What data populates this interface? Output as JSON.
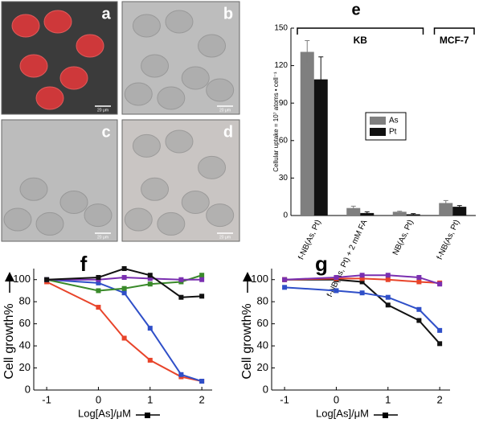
{
  "panels": [
    {
      "label": "a",
      "scale_bar": "20 μm"
    },
    {
      "label": "b",
      "scale_bar": "20 μm"
    },
    {
      "label": "c",
      "scale_bar": "20 μm"
    },
    {
      "label": "d",
      "scale_bar": "20 μm"
    }
  ],
  "chart_data": [
    {
      "type": "bar",
      "label": "e",
      "ylabel": "Cellular uptake = 10⁷ atoms • cell⁻¹",
      "categories": [
        "f-NB(As, Pt)",
        "f-NB(As, Pt) + 2 mM FA",
        "NB(As, Pt)",
        "f-NB(As, Pt)"
      ],
      "groups": [
        "KB",
        "MCF-7"
      ],
      "series": [
        {
          "name": "As",
          "color": "#7f7f7f",
          "values": [
            131,
            6,
            3,
            10
          ],
          "errors": [
            9,
            1.5,
            0.5,
            2
          ]
        },
        {
          "name": "Pt",
          "color": "#111111",
          "values": [
            109,
            2,
            1,
            7
          ],
          "errors": [
            18,
            1,
            0.5,
            1
          ]
        }
      ],
      "ylim": [
        0,
        150
      ],
      "yticks": [
        0,
        30,
        60,
        90,
        120,
        150
      ]
    },
    {
      "type": "line",
      "label": "f",
      "xlabel": "Log[As]/μM",
      "ylabel": "Cell growth%",
      "x": [
        -1,
        0,
        0.5,
        1,
        1.6,
        2
      ],
      "series": [
        {
          "color": "#e8442a",
          "values": [
            98,
            75,
            47,
            27,
            12,
            8
          ]
        },
        {
          "color": "#2f4fc8",
          "values": [
            100,
            97,
            88,
            56,
            14,
            8
          ]
        },
        {
          "color": "#3a8a2a",
          "values": [
            100,
            90,
            92,
            96,
            98,
            104
          ]
        },
        {
          "color": "#7a2fb0",
          "values": [
            100,
            100,
            102,
            101,
            100,
            100
          ]
        },
        {
          "color": "#111111",
          "values": [
            100,
            102,
            110,
            104,
            84,
            85
          ]
        }
      ],
      "xlim": [
        -1.25,
        2.2
      ],
      "xticks": [
        -1,
        0,
        1,
        2
      ],
      "ylim": [
        0,
        110
      ],
      "yticks": [
        0,
        20,
        40,
        60,
        80,
        100
      ]
    },
    {
      "type": "line",
      "label": "g",
      "xlabel": "Log[As]/μM",
      "ylabel": "Cell growth%",
      "x": [
        -1,
        0,
        0.5,
        1,
        1.6,
        2
      ],
      "series": [
        {
          "color": "#111111",
          "values": [
            100,
            100,
            98,
            77,
            63,
            42
          ]
        },
        {
          "color": "#2f4fc8",
          "values": [
            93,
            90,
            88,
            84,
            73,
            54
          ]
        },
        {
          "color": "#e8442a",
          "values": [
            100,
            101,
            101,
            100,
            98,
            97
          ]
        },
        {
          "color": "#7a2fb0",
          "values": [
            100,
            102,
            104,
            104,
            102,
            96
          ]
        }
      ],
      "xlim": [
        -1.25,
        2.2
      ],
      "xticks": [
        -1,
        0,
        1,
        2
      ],
      "ylim": [
        0,
        110
      ],
      "yticks": [
        0,
        20,
        40,
        60,
        80,
        100
      ]
    }
  ]
}
